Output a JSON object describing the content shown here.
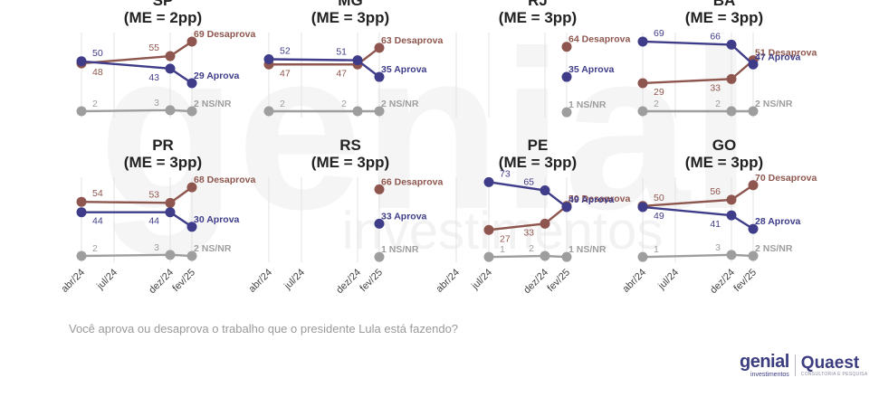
{
  "colors": {
    "aprova": "#3f3d8a",
    "desaprova": "#8e564e",
    "nsnr": "#9e9e9e",
    "grid": "#e3e3e3",
    "watermark": "#f4f4f4"
  },
  "question": "Você aprova ou desaprova o trabalho que o presidente Lula está fazendo?",
  "logos": {
    "genial_main": "genial",
    "genial_sub": "investimentos",
    "quaest_main": "Quaest",
    "quaest_sub": "CONSULTORIA E PESQUISA"
  },
  "watermark": {
    "main": "genial",
    "sub": "investimentos"
  },
  "chart_data": {
    "type": "line",
    "x_ticks": [
      "abr/24",
      "jul/24",
      "dez/24",
      "fev/25"
    ],
    "series_names": {
      "aprova": "Aprova",
      "desaprova": "Desaprova",
      "nsnr": "NS/NR"
    },
    "ylim": [
      0,
      100
    ],
    "grid": "vertical",
    "panels": [
      {
        "state": "SP",
        "me": "(ME = 2pp)",
        "x": [
          "abr/24",
          "dez/24",
          "fev/25"
        ],
        "aprova": [
          50,
          43,
          29
        ],
        "desaprova": [
          48,
          55,
          69
        ],
        "nsnr": [
          2,
          3,
          2
        ]
      },
      {
        "state": "MG",
        "me": "(ME = 3pp)",
        "x": [
          "abr/24",
          "dez/24",
          "fev/25"
        ],
        "aprova": [
          52,
          51,
          35
        ],
        "desaprova": [
          47,
          47,
          63
        ],
        "nsnr": [
          2,
          2,
          2
        ]
      },
      {
        "state": "RJ",
        "me": "(ME = 3pp)",
        "x": [
          "fev/25"
        ],
        "aprova": [
          35
        ],
        "desaprova": [
          64
        ],
        "nsnr": [
          1
        ]
      },
      {
        "state": "BA",
        "me": "(ME = 3pp)",
        "x": [
          "abr/24",
          "dez/24",
          "fev/25"
        ],
        "aprova": [
          69,
          66,
          47
        ],
        "desaprova": [
          29,
          33,
          51
        ],
        "nsnr": [
          2,
          2,
          2
        ]
      },
      {
        "state": "PR",
        "me": "(ME = 3pp)",
        "x": [
          "abr/24",
          "dez/24",
          "fev/25"
        ],
        "aprova": [
          44,
          44,
          30
        ],
        "desaprova": [
          54,
          53,
          68
        ],
        "nsnr": [
          2,
          3,
          2
        ]
      },
      {
        "state": "RS",
        "me": "(ME = 3pp)",
        "x": [
          "fev/25"
        ],
        "aprova": [
          33
        ],
        "desaprova": [
          66
        ],
        "nsnr": [
          1
        ]
      },
      {
        "state": "PE",
        "me": "(ME = 3pp)",
        "x": [
          "jul/24",
          "dez/24",
          "fev/25"
        ],
        "aprova": [
          73,
          65,
          49
        ],
        "desaprova": [
          27,
          33,
          50
        ],
        "nsnr": [
          1,
          2,
          1
        ]
      },
      {
        "state": "GO",
        "me": "(ME = 3pp)",
        "x": [
          "abr/24",
          "dez/24",
          "fev/25"
        ],
        "aprova": [
          49,
          41,
          28
        ],
        "desaprova": [
          50,
          56,
          70
        ],
        "nsnr": [
          1,
          3,
          2
        ]
      }
    ]
  }
}
